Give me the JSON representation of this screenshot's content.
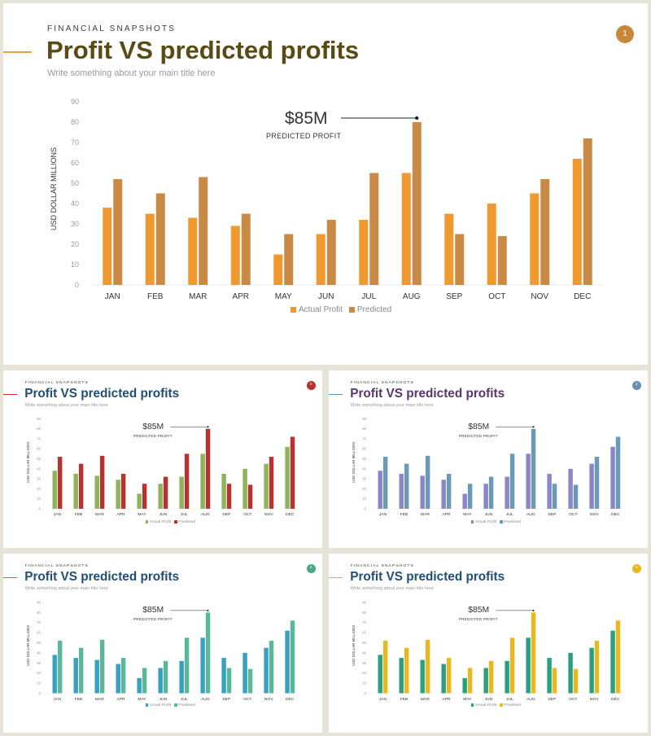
{
  "kicker": "FINANCIAL SNAPSHOTS",
  "title": "Profit VS predicted profits",
  "subtitle": "Write something about your main title here",
  "callout": {
    "value": "$85M",
    "label": "PREDICTED PROFIT"
  },
  "slides": [
    {
      "badge": "1",
      "title_color": "#5a4a14",
      "badge_color": "#c8883a",
      "accent_color": "#e8a040",
      "actual_color": "#f0992e",
      "predicted_color": "#c98a45"
    },
    {
      "badge": "2",
      "title_color": "#1f4e79",
      "badge_color": "#b8322f",
      "accent_color": "#b8322f",
      "actual_color": "#8fb35a",
      "predicted_color": "#b8322f"
    },
    {
      "badge": "3",
      "title_color": "#5b3570",
      "badge_color": "#6b8fb0",
      "accent_color": "#6b8fb0",
      "actual_color": "#8b86c8",
      "predicted_color": "#6a9ab8"
    },
    {
      "badge": "4",
      "title_color": "#1f4e79",
      "badge_color": "#4aa88a",
      "accent_color": "#3a9ab0",
      "actual_color": "#3aa0c0",
      "predicted_color": "#5ab89a"
    },
    {
      "badge": "5",
      "title_color": "#1f4e79",
      "badge_color": "#e8b820",
      "accent_color": "#e8b820",
      "actual_color": "#2aa080",
      "predicted_color": "#e8b820"
    }
  ],
  "chart_data": {
    "type": "bar",
    "categories": [
      "JAN",
      "FEB",
      "MAR",
      "APR",
      "MAY",
      "JUN",
      "JUL",
      "AUG",
      "SEP",
      "OCT",
      "NOV",
      "DEC"
    ],
    "series": [
      {
        "name": "Actual Profit",
        "values": [
          38,
          35,
          33,
          29,
          15,
          25,
          32,
          55,
          35,
          40,
          45,
          62
        ]
      },
      {
        "name": "Predicted",
        "values": [
          52,
          45,
          53,
          35,
          25,
          32,
          55,
          80,
          25,
          24,
          52,
          72
        ]
      }
    ],
    "ylabel": "USD DOLLAR MILLIONS",
    "ylim": [
      0,
      90
    ],
    "yticks": [
      "0",
      "10",
      "20",
      "30",
      "40",
      "50",
      "60",
      "70",
      "80",
      "90"
    ],
    "annotation": {
      "category": "AUG",
      "series": "Predicted",
      "value": 80
    }
  }
}
